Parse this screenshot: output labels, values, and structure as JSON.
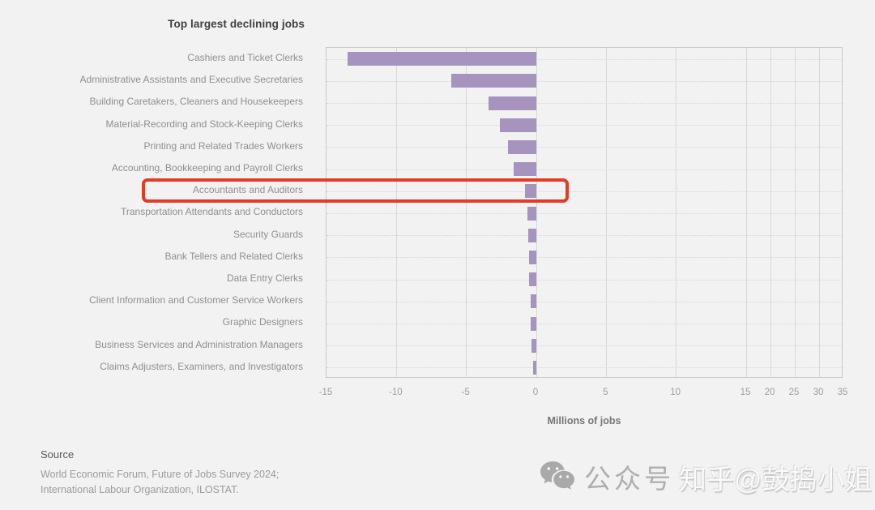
{
  "title": "Top largest declining jobs",
  "chart_data": {
    "type": "bar",
    "orientation": "horizontal",
    "title": "Top largest declining jobs",
    "xlabel": "Millions of jobs",
    "categories": [
      "Cashiers and Ticket Clerks",
      "Administrative Assistants and Executive Secretaries",
      "Building Caretakers, Cleaners and Housekeepers",
      "Material-Recording and Stock-Keeping Clerks",
      "Printing and Related Trades Workers",
      "Accounting, Bookkeeping and Payroll Clerks",
      "Accountants and Auditors",
      "Transportation Attendants and Conductors",
      "Security Guards",
      "Bank Tellers and Related Clerks",
      "Data Entry Clerks",
      "Client Information and Customer Service Workers",
      "Graphic Designers",
      "Business Services and Administration Managers",
      "Claims Adjusters, Examiners, and Investigators"
    ],
    "values": [
      -13.5,
      -6.1,
      -3.4,
      -2.6,
      -2.0,
      -1.6,
      -0.8,
      -0.65,
      -0.6,
      -0.55,
      -0.5,
      -0.42,
      -0.38,
      -0.32,
      -0.25
    ],
    "x_ticks": [
      -15,
      -10,
      -5,
      0,
      5,
      10,
      15,
      20,
      25,
      30,
      35
    ],
    "xlim": [
      -15,
      35
    ],
    "grid": "vertical solid at ticks, dotted horizontal at each category",
    "legend": "none",
    "bar_color": "#a794be",
    "highlight": {
      "category": "Accountants and Auditors",
      "box_color": "#e23b26"
    }
  },
  "source": {
    "heading": "Source",
    "lines": [
      "World Economic Forum, Future of Jobs Survey 2024;",
      "International Labour Organization, ILOSTAT."
    ]
  },
  "watermark": {
    "wechat_label": "公众号",
    "zhihu_label": "知乎@鼓捣小姐",
    "icon_color": "#a9a9a9"
  }
}
